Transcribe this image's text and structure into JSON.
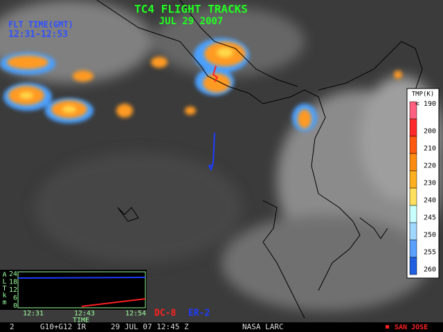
{
  "header": {
    "title": "TC4 FLIGHT TRACKS",
    "date": "JUL 29 2007"
  },
  "flight_time": {
    "label": "FLT TIME(GMT)",
    "range": "12:31-12:53"
  },
  "colorbar": {
    "title": "TMP(K)",
    "labels": [
      "< 190",
      "200",
      "210",
      "220",
      "230",
      "240",
      "245",
      "250",
      "255",
      "260"
    ]
  },
  "altitude_plot": {
    "axis_title": "ALTkm",
    "yticks": [
      "24",
      "18",
      "12",
      "6",
      "0"
    ],
    "xticks": [
      "12:31",
      "12:43",
      "12:54"
    ],
    "x_title": "TIME"
  },
  "legend": [
    "DC-8",
    "ER-2"
  ],
  "footer": {
    "frame": "2",
    "satellite": "G10+G12 IR",
    "datetime": "29 JUL 07 12:45 Z",
    "source": "NASA LARC",
    "site": "SAN JOSE"
  }
}
